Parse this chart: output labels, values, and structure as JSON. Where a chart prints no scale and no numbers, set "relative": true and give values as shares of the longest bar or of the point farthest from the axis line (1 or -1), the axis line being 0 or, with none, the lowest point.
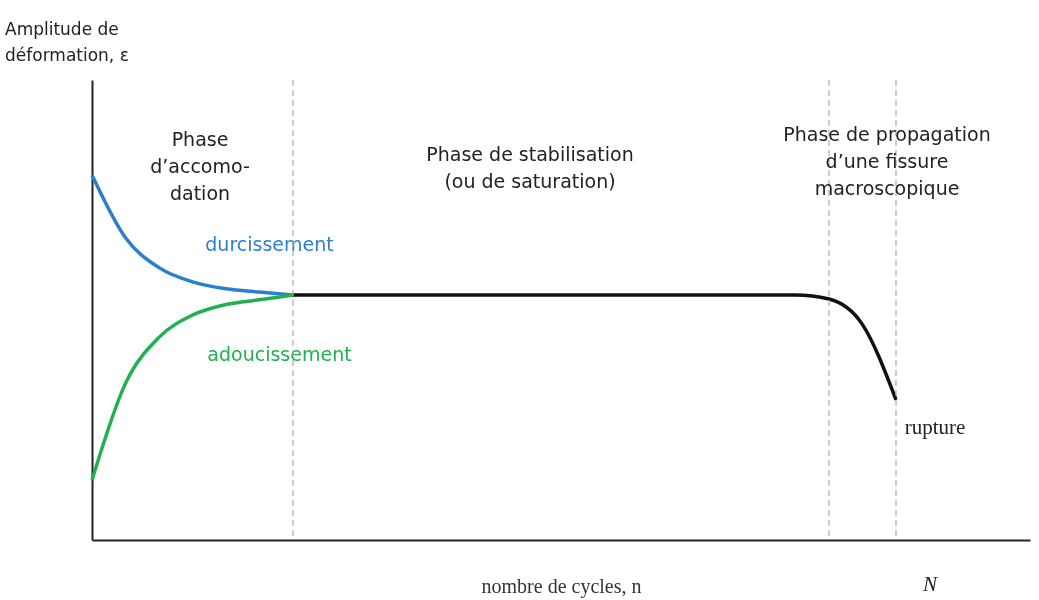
{
  "chart_data": {
    "type": "line",
    "relative": true,
    "xlabel": "nombre de cycles, n",
    "categories": [
      null,
      null,
      null,
      null,
      null,
      null,
      null,
      null,
      null,
      null,
      null,
      null,
      null,
      null,
      null,
      null,
      null,
      null,
      null,
      null,
      null,
      null,
      null,
      null,
      null,
      null,
      null,
      null
    ],
    "tick_labels": "x",
    "legend": false,
    "grid": "x",
    "marker": "none",
    "line_style": "solid",
    "series": [
      {
        "name": "durcissement",
        "color": "#2a7fd0",
        "values": [
          1.0,
          0.828,
          0.746,
          0.707,
          0.688,
          0.679,
          0.671,
          null,
          null,
          null,
          null,
          null,
          null,
          null,
          null,
          null,
          null,
          null,
          null,
          null,
          null,
          null,
          null,
          null,
          null,
          null,
          null,
          null
        ]
      },
      {
        "name": "adoucissement",
        "color": "#1fb050",
        "values": [
          0.164,
          0.429,
          0.555,
          0.616,
          0.645,
          0.658,
          0.671,
          null,
          null,
          null,
          null,
          null,
          null,
          null,
          null,
          null,
          null,
          null,
          null,
          null,
          null,
          null,
          null,
          null,
          null,
          null,
          null,
          null
        ]
      },
      {
        "color": "#111111",
        "values": [
          null,
          null,
          null,
          null,
          null,
          null,
          0.671,
          0.671,
          0.671,
          0.671,
          0.671,
          0.671,
          0.671,
          0.671,
          0.671,
          0.671,
          0.671,
          0.671,
          0.671,
          0.671,
          0.671,
          0.671,
          0.66,
          0.59,
          0.384,
          null,
          null,
          null
        ]
      }
    ],
    "annotations": [
      "Phase\nd’accomo-\ndation",
      "Phase de stabilisation\n(ou de saturation)",
      "Phase de propagation\nd’une fissure\nmacroscopique",
      "rupture",
      "N",
      "Amplitude de\ndéformation, ε"
    ]
  }
}
